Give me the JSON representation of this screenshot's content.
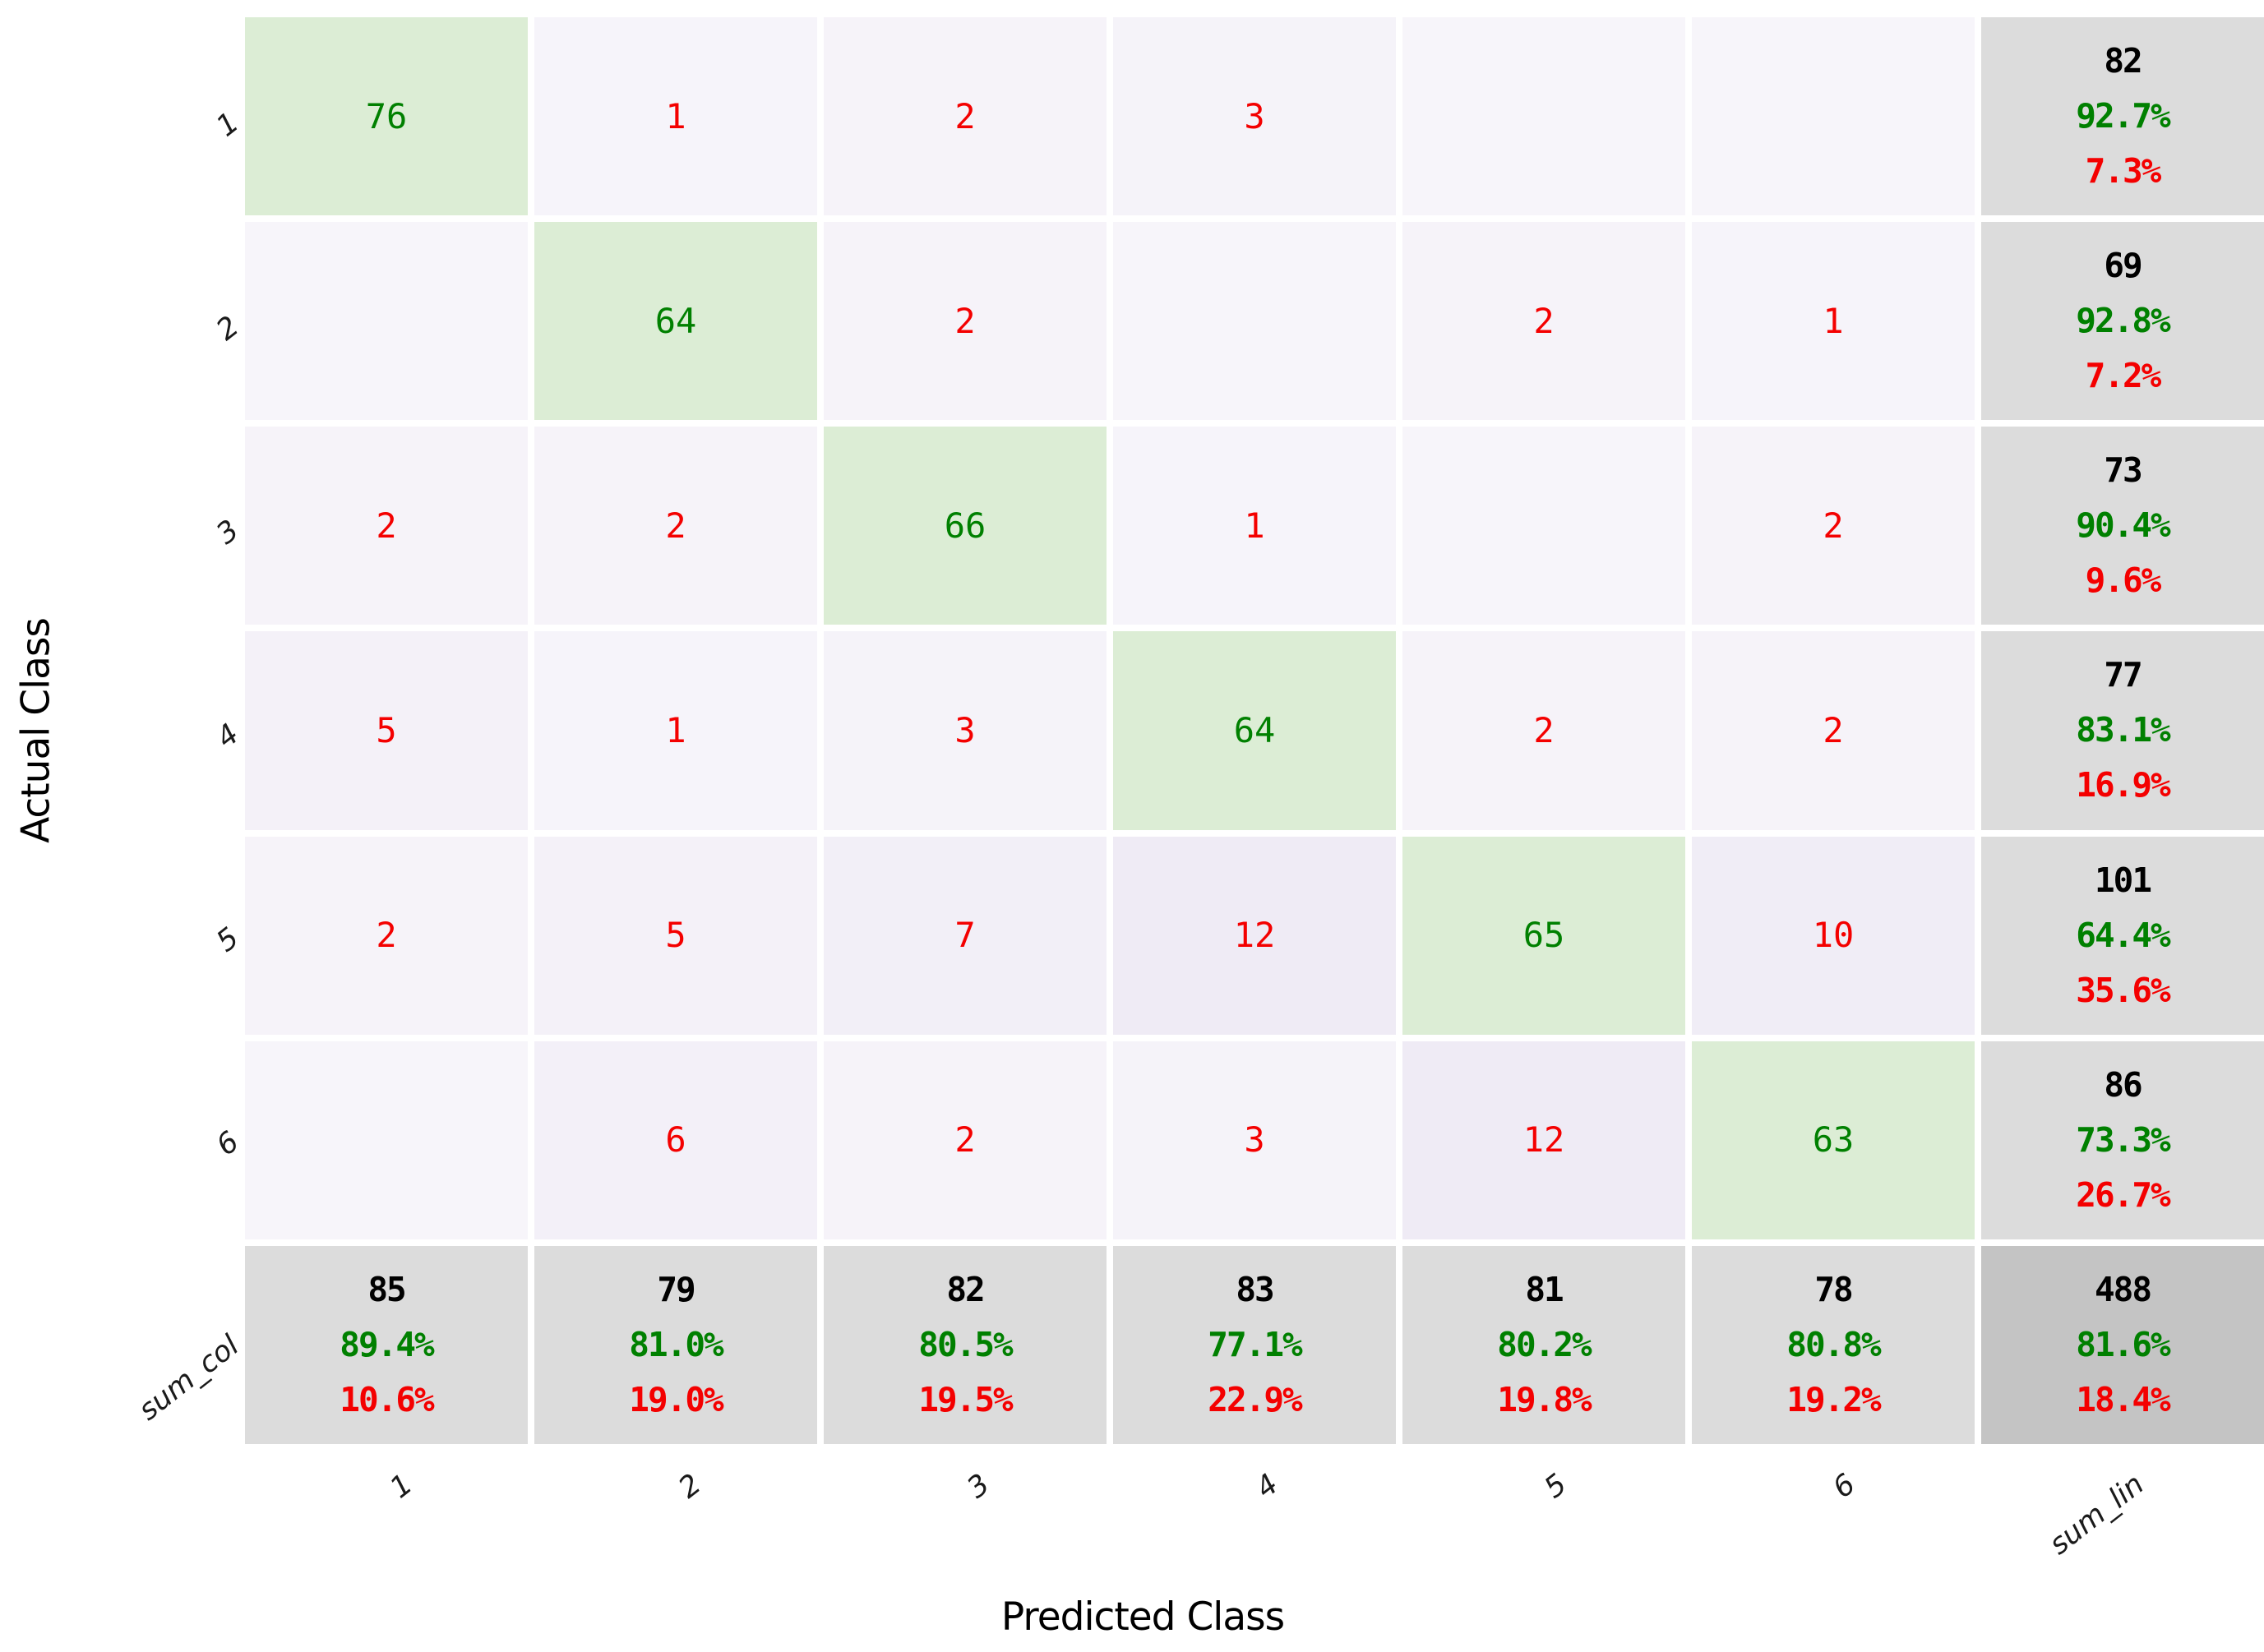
{
  "chart_data": {
    "type": "heatmap",
    "subtype": "confusion-matrix",
    "title": "",
    "xlabel": "Predicted Class",
    "ylabel": "Actual Class",
    "classes": [
      "1",
      "2",
      "3",
      "4",
      "5",
      "6"
    ],
    "x_tick_labels": [
      "1",
      "2",
      "3",
      "4",
      "5",
      "6",
      "sum_lin"
    ],
    "y_tick_labels": [
      "1",
      "2",
      "3",
      "4",
      "5",
      "6",
      "sum_col"
    ],
    "sum_row_label": "sum_col",
    "sum_col_label": "sum_lin",
    "matrix": [
      [
        76,
        1,
        2,
        3,
        0,
        0
      ],
      [
        0,
        64,
        2,
        0,
        2,
        1
      ],
      [
        2,
        2,
        66,
        1,
        0,
        2
      ],
      [
        5,
        1,
        3,
        64,
        2,
        2
      ],
      [
        2,
        5,
        7,
        12,
        65,
        10
      ],
      [
        0,
        6,
        2,
        3,
        12,
        63
      ]
    ],
    "row_totals": [
      {
        "total": "82",
        "correct_pct": "92.7%",
        "error_pct": "7.3%"
      },
      {
        "total": "69",
        "correct_pct": "92.8%",
        "error_pct": "7.2%"
      },
      {
        "total": "73",
        "correct_pct": "90.4%",
        "error_pct": "9.6%"
      },
      {
        "total": "77",
        "correct_pct": "83.1%",
        "error_pct": "16.9%"
      },
      {
        "total": "101",
        "correct_pct": "64.4%",
        "error_pct": "35.6%"
      },
      {
        "total": "86",
        "correct_pct": "73.3%",
        "error_pct": "26.7%"
      }
    ],
    "col_totals": [
      {
        "total": "85",
        "correct_pct": "89.4%",
        "error_pct": "10.6%"
      },
      {
        "total": "79",
        "correct_pct": "81.0%",
        "error_pct": "19.0%"
      },
      {
        "total": "82",
        "correct_pct": "80.5%",
        "error_pct": "19.5%"
      },
      {
        "total": "83",
        "correct_pct": "77.1%",
        "error_pct": "22.9%"
      },
      {
        "total": "81",
        "correct_pct": "80.2%",
        "error_pct": "19.8%"
      },
      {
        "total": "78",
        "correct_pct": "80.8%",
        "error_pct": "19.2%"
      }
    ],
    "grand_total": {
      "total": "488",
      "correct_pct": "81.6%",
      "error_pct": "18.4%"
    },
    "legend": "none",
    "axis_ranges": {
      "rows": 7,
      "cols": 7
    }
  },
  "colors": {
    "diagonal_bg": "#dcedd5",
    "offdiag_bg_low": "#f7f5fa",
    "offdiag_bg_high": "#efebf5",
    "sum_bg": "#dcdcdc",
    "corner_bg": "#c4c4c4",
    "correct_text": "#008000",
    "error_text": "#f40000",
    "total_text": "#000000",
    "background": "#ffffff",
    "gridline": "#ffffff"
  }
}
